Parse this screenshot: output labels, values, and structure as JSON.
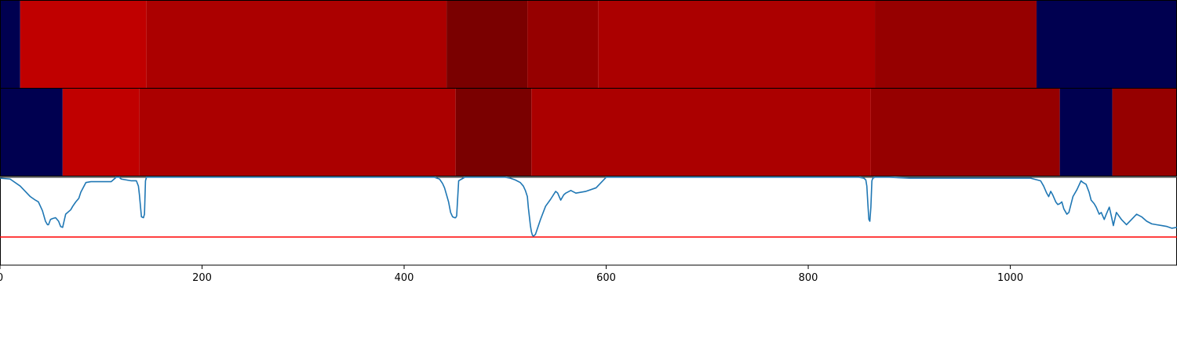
{
  "chart_data": {
    "type": "heatmap",
    "title": "",
    "xlabel": "",
    "ylabel": "",
    "xlim": [
      0,
      1165
    ],
    "x_ticks": [
      "0",
      "200",
      "400",
      "600",
      "800",
      "1000"
    ],
    "x_tick_values": [
      0,
      200,
      400,
      600,
      800,
      1000
    ],
    "grid": false,
    "rows": [
      {
        "segments": [
          {
            "start": 0,
            "end": 20,
            "color": "#000050"
          },
          {
            "start": 20,
            "end": 145,
            "color": "#c00000"
          },
          {
            "start": 145,
            "end": 442,
            "color": "#ab0000"
          },
          {
            "start": 442,
            "end": 522,
            "color": "#7a0000"
          },
          {
            "start": 522,
            "end": 592,
            "color": "#960000"
          },
          {
            "start": 592,
            "end": 866,
            "color": "#ab0000"
          },
          {
            "start": 866,
            "end": 1026,
            "color": "#960000"
          },
          {
            "start": 1026,
            "end": 1165,
            "color": "#000050"
          }
        ]
      },
      {
        "segments": [
          {
            "start": 0,
            "end": 62,
            "color": "#000050"
          },
          {
            "start": 62,
            "end": 138,
            "color": "#c00000"
          },
          {
            "start": 138,
            "end": 451,
            "color": "#ab0000"
          },
          {
            "start": 451,
            "end": 526,
            "color": "#7a0000"
          },
          {
            "start": 526,
            "end": 862,
            "color": "#ab0000"
          },
          {
            "start": 862,
            "end": 1049,
            "color": "#960000"
          },
          {
            "start": 1049,
            "end": 1101,
            "color": "#000050"
          },
          {
            "start": 1101,
            "end": 1165,
            "color": "#960000"
          }
        ]
      }
    ],
    "line_panel": {
      "ylim": [
        0,
        1
      ],
      "threshold": 0.32,
      "threshold_color": "#ff0000",
      "line_color": "#1f77b4",
      "x": [
        0,
        10,
        20,
        25,
        30,
        35,
        38,
        42,
        45,
        47,
        48,
        50,
        52,
        55,
        58,
        60,
        62,
        65,
        70,
        72,
        75,
        78,
        80,
        85,
        90,
        100,
        110,
        115,
        118,
        120,
        125,
        130,
        135,
        137,
        138,
        140,
        142,
        143,
        144,
        145,
        150,
        200,
        300,
        420,
        430,
        435,
        438,
        440,
        442,
        444,
        446,
        448,
        450,
        451,
        452,
        454,
        460,
        480,
        500,
        505,
        510,
        515,
        518,
        520,
        522,
        523,
        524,
        525,
        526,
        527,
        528,
        530,
        535,
        540,
        545,
        550,
        552,
        555,
        558,
        560,
        565,
        570,
        580,
        590,
        595,
        600,
        610,
        620,
        700,
        800,
        850,
        855,
        857,
        858,
        859,
        860,
        861,
        862,
        863,
        864,
        866,
        870,
        880,
        900,
        1000,
        1020,
        1030,
        1033,
        1036,
        1038,
        1040,
        1042,
        1045,
        1047,
        1049,
        1051,
        1053,
        1056,
        1058,
        1062,
        1066,
        1070,
        1072,
        1075,
        1078,
        1080,
        1083,
        1085,
        1088,
        1090,
        1093,
        1095,
        1098,
        1100,
        1102,
        1105,
        1110,
        1115,
        1120,
        1125,
        1130,
        1135,
        1140,
        1145,
        1150,
        1155,
        1160,
        1165
      ],
      "y": [
        0.99,
        0.98,
        0.9,
        0.84,
        0.78,
        0.74,
        0.72,
        0.62,
        0.5,
        0.46,
        0.46,
        0.52,
        0.53,
        0.54,
        0.5,
        0.44,
        0.43,
        0.58,
        0.63,
        0.67,
        0.72,
        0.76,
        0.83,
        0.94,
        0.95,
        0.95,
        0.95,
        1.0,
        1.0,
        0.98,
        0.97,
        0.96,
        0.96,
        0.9,
        0.8,
        0.55,
        0.54,
        0.58,
        0.96,
        1.0,
        1.0,
        1.0,
        1.0,
        1.0,
        1.0,
        0.98,
        0.93,
        0.88,
        0.8,
        0.72,
        0.6,
        0.55,
        0.54,
        0.54,
        0.56,
        0.96,
        1.0,
        1.0,
        1.0,
        0.99,
        0.97,
        0.94,
        0.9,
        0.85,
        0.78,
        0.65,
        0.55,
        0.45,
        0.38,
        0.34,
        0.33,
        0.35,
        0.52,
        0.67,
        0.75,
        0.84,
        0.82,
        0.74,
        0.8,
        0.82,
        0.85,
        0.82,
        0.84,
        0.88,
        0.94,
        1.0,
        1.0,
        1.0,
        1.0,
        1.0,
        1.0,
        0.99,
        0.97,
        0.9,
        0.7,
        0.52,
        0.5,
        0.66,
        0.96,
        0.99,
        1.0,
        1.0,
        1.0,
        0.99,
        0.99,
        0.99,
        0.96,
        0.9,
        0.82,
        0.78,
        0.84,
        0.8,
        0.72,
        0.69,
        0.7,
        0.72,
        0.64,
        0.58,
        0.6,
        0.78,
        0.86,
        0.96,
        0.94,
        0.92,
        0.83,
        0.74,
        0.7,
        0.66,
        0.58,
        0.6,
        0.52,
        0.58,
        0.66,
        0.56,
        0.45,
        0.6,
        0.52,
        0.46,
        0.52,
        0.58,
        0.55,
        0.5,
        0.47,
        0.46,
        0.45,
        0.44,
        0.42,
        0.43,
        0.42,
        0.43,
        0.43,
        0.44
      ]
    }
  }
}
